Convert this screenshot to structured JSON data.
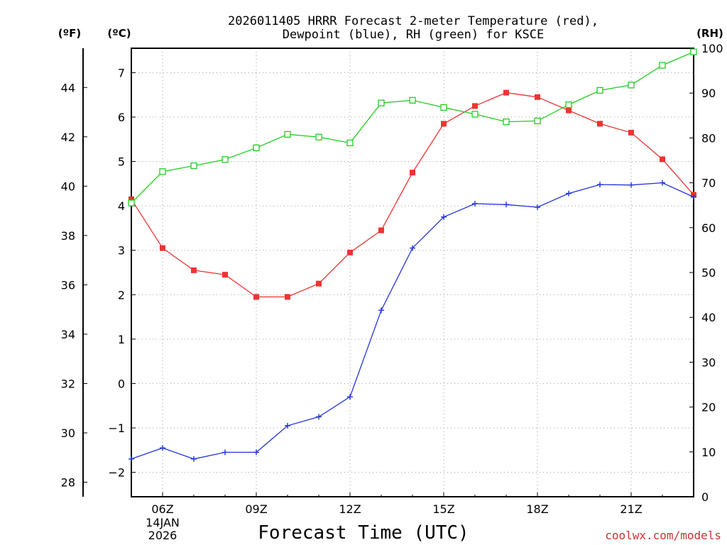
{
  "title_line1": "2026011405 HRRR Forecast 2-meter Temperature (red),",
  "title_line2": "Dewpoint (blue), RH (green) for KSCE",
  "unit_f": "(ºF)",
  "unit_c": "(ºC)",
  "unit_rh": "(RH)",
  "xlabel": "Forecast Time (UTC)",
  "credit": "coolwx.com/models",
  "colors": {
    "temperature": "#ee3333",
    "dewpoint": "#2233dd",
    "rh": "#22cc22"
  },
  "chart_data": {
    "type": "line",
    "title": "2026011405 HRRR Forecast 2-meter Temperature (red), Dewpoint (blue), RH (green) for KSCE",
    "xlabel": "Forecast Time (UTC)",
    "x_hours": [
      5,
      6,
      7,
      8,
      9,
      10,
      11,
      12,
      13,
      14,
      15,
      16,
      17,
      18,
      19,
      20,
      21,
      22,
      23
    ],
    "x_ticks": [
      {
        "hour": 6,
        "label": "06Z",
        "sub": [
          "14JAN",
          "2026"
        ]
      },
      {
        "hour": 9,
        "label": "09Z"
      },
      {
        "hour": 12,
        "label": "12Z"
      },
      {
        "hour": 15,
        "label": "15Z"
      },
      {
        "hour": 18,
        "label": "18Z"
      },
      {
        "hour": 21,
        "label": "21Z"
      }
    ],
    "xlim": [
      5,
      23
    ],
    "y_celsius": {
      "range": [
        -2.55,
        7.55
      ],
      "ticks": [
        -2,
        -1,
        0,
        1,
        2,
        3,
        4,
        5,
        6,
        7
      ],
      "tick_labels": [
        "−2",
        "−1",
        "0",
        "1",
        "2",
        "3",
        "4",
        "5",
        "6",
        "7"
      ]
    },
    "y_fahrenheit": {
      "ticks": [
        28,
        30,
        32,
        34,
        36,
        38,
        40,
        42,
        44
      ],
      "tick_labels": [
        "28",
        "30",
        "32",
        "34",
        "36",
        "38",
        "40",
        "42",
        "44"
      ]
    },
    "y_rh": {
      "range": [
        0,
        100
      ],
      "ticks": [
        0,
        10,
        20,
        30,
        40,
        50,
        60,
        70,
        80,
        90,
        100
      ],
      "tick_labels": [
        "0",
        "10",
        "20",
        "30",
        "40",
        "50",
        "60",
        "70",
        "80",
        "90",
        "100"
      ]
    },
    "series": [
      {
        "name": "Temperature",
        "units": "C",
        "color": "#ee3333",
        "marker": "filled-square",
        "values": [
          4.15,
          3.05,
          2.55,
          2.45,
          1.95,
          1.95,
          2.25,
          2.95,
          3.45,
          4.75,
          5.85,
          6.25,
          6.55,
          6.45,
          6.15,
          5.85,
          5.65,
          5.05,
          4.25
        ]
      },
      {
        "name": "Dewpoint",
        "units": "C",
        "color": "#2233dd",
        "marker": "plus",
        "values": [
          -1.7,
          -1.45,
          -1.7,
          -1.55,
          -1.55,
          -0.95,
          -0.75,
          -0.3,
          1.65,
          3.05,
          3.75,
          4.05,
          4.03,
          3.97,
          4.28,
          4.48,
          4.47,
          4.52,
          4.2
        ]
      },
      {
        "name": "RH",
        "units": "%",
        "color": "#22cc22",
        "marker": "open-square",
        "axis": "right",
        "values": [
          65.5,
          72.5,
          73.8,
          75.2,
          77.8,
          80.8,
          80.2,
          78.9,
          87.8,
          88.4,
          86.8,
          85.3,
          83.6,
          83.8,
          87.4,
          90.6,
          91.8,
          96.2,
          99.2
        ]
      }
    ]
  }
}
